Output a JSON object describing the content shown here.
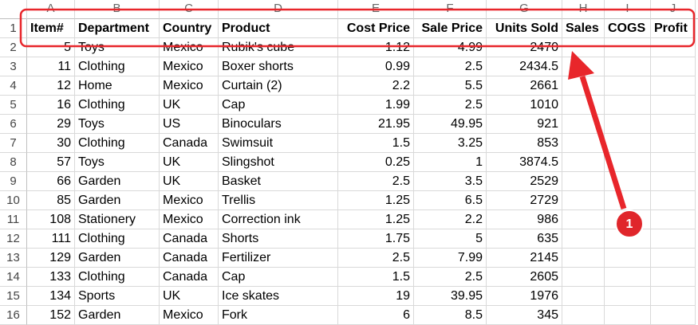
{
  "columns": [
    "A",
    "B",
    "C",
    "D",
    "E",
    "F",
    "G",
    "H",
    "I",
    "J"
  ],
  "row_numbers": [
    1,
    2,
    3,
    4,
    5,
    6,
    7,
    8,
    9,
    10,
    11,
    12,
    13,
    14,
    15,
    16
  ],
  "header": [
    "Item#",
    "Department",
    "Country",
    "Product",
    "Cost Price",
    "Sale Price",
    "Units Sold",
    "Sales",
    "COGS",
    "Profit"
  ],
  "rows": [
    [
      5,
      "Toys",
      "Mexico",
      "Rubik's cube",
      1.12,
      4.99,
      2470
    ],
    [
      11,
      "Clothing",
      "Mexico",
      "Boxer shorts",
      0.99,
      2.5,
      2434.5
    ],
    [
      12,
      "Home",
      "Mexico",
      "Curtain (2)",
      2.2,
      5.5,
      2661
    ],
    [
      16,
      "Clothing",
      "UK",
      "Cap",
      1.99,
      2.5,
      1010
    ],
    [
      29,
      "Toys",
      "US",
      "Binoculars",
      21.95,
      49.95,
      921
    ],
    [
      30,
      "Clothing",
      "Canada",
      "Swimsuit",
      1.5,
      3.25,
      853
    ],
    [
      57,
      "Toys",
      "UK",
      "Slingshot",
      0.25,
      1,
      3874.5
    ],
    [
      66,
      "Garden",
      "UK",
      "Basket",
      2.5,
      3.5,
      2529
    ],
    [
      85,
      "Garden",
      "Mexico",
      "Trellis",
      1.25,
      6.5,
      2729
    ],
    [
      108,
      "Stationery",
      "Mexico",
      "Correction ink",
      1.25,
      2.2,
      986
    ],
    [
      111,
      "Clothing",
      "Canada",
      "Shorts",
      1.75,
      5,
      635
    ],
    [
      129,
      "Garden",
      "Canada",
      "Fertilizer",
      2.5,
      7.99,
      2145
    ],
    [
      133,
      "Clothing",
      "Canada",
      "Cap",
      1.5,
      2.5,
      2605
    ],
    [
      134,
      "Sports",
      "UK",
      "Ice skates",
      19,
      39.95,
      1976
    ],
    [
      152,
      "Garden",
      "Mexico",
      "Fork",
      6,
      8.5,
      345
    ]
  ],
  "annotation": {
    "label": 1
  }
}
